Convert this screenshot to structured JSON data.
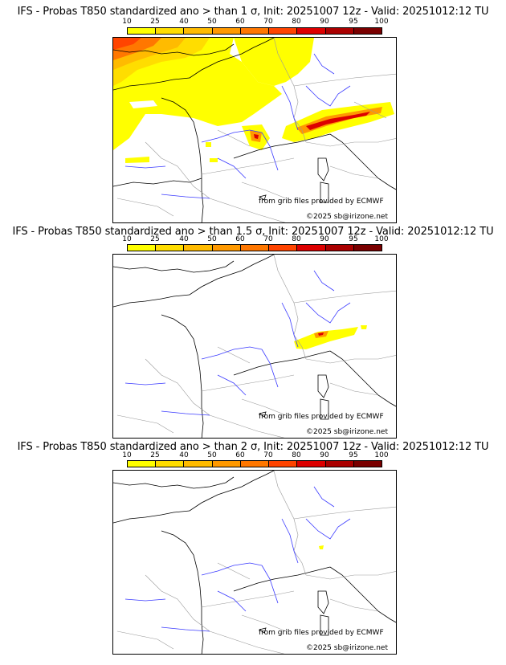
{
  "colorbar": {
    "ticks": [
      "10",
      "25",
      "40",
      "50",
      "60",
      "70",
      "80",
      "90",
      "95",
      "100"
    ],
    "colors": [
      "#ffff00",
      "#ffdd00",
      "#ffbb00",
      "#ff9900",
      "#ff7700",
      "#ff4400",
      "#dd0000",
      "#aa0000",
      "#7a0000"
    ]
  },
  "credits": {
    "source": "from grib files provided by ECMWF",
    "copyright": "©2025 sb@irizone.net"
  },
  "panels": [
    {
      "title": "IFS - Probas T850  standardized ano > than 1 σ, Init: 20251007 12z - Valid: 20251012:12 TU",
      "threshold": "1 σ"
    },
    {
      "title": "IFS - Probas T850  standardized ano > than 1.5 σ, Init: 20251007 12z - Valid: 20251012:12 TU",
      "threshold": "1.5 σ"
    },
    {
      "title": "IFS - Probas T850  standardized ano > than 2 σ, Init: 20251007 12z - Valid: 20251012:12 TU",
      "threshold": "2 σ"
    }
  ]
}
